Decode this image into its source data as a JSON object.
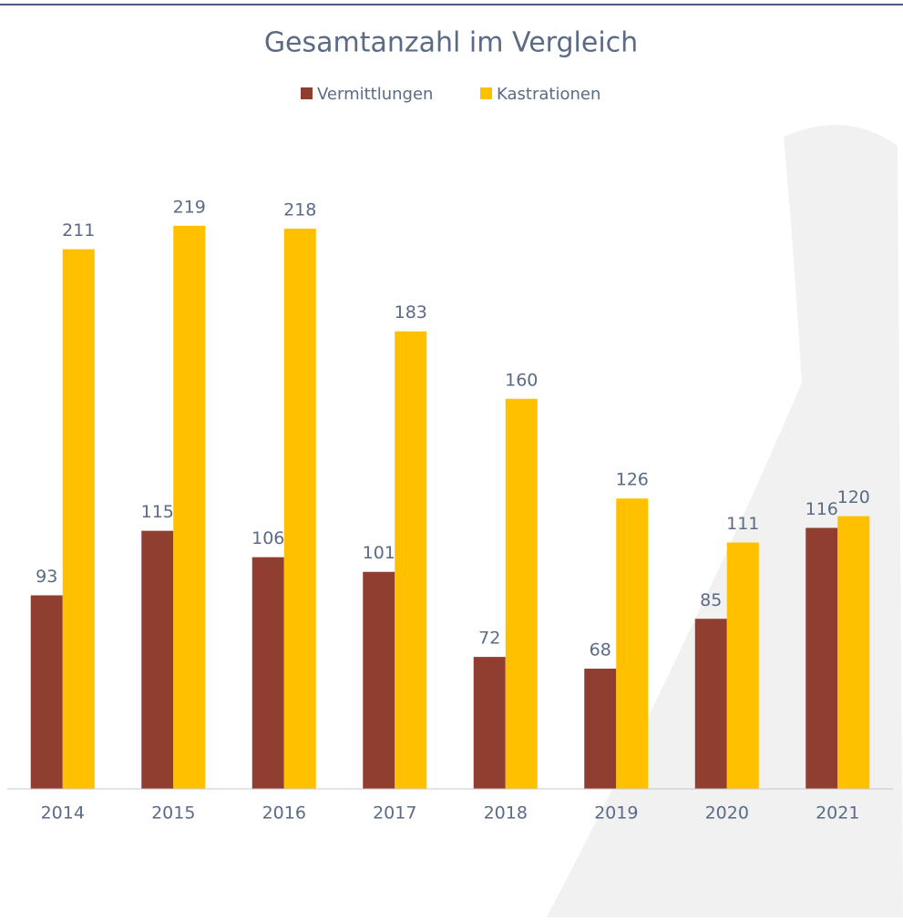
{
  "chart_data": {
    "type": "bar",
    "title": "Gesamtanzahl im Vergleich",
    "categories": [
      "2014",
      "2015",
      "2016",
      "2017",
      "2018",
      "2019",
      "2020",
      "2021"
    ],
    "series": [
      {
        "name": "Vermittlungen",
        "color": "#8f3e30",
        "values": [
          93,
          115,
          106,
          101,
          72,
          68,
          85,
          116
        ]
      },
      {
        "name": "Kastrationen",
        "color": "#ffc000",
        "values": [
          211,
          219,
          218,
          183,
          160,
          126,
          111,
          120
        ]
      }
    ],
    "ylim": [
      27,
      250
    ],
    "grid": false,
    "legend": "top"
  }
}
